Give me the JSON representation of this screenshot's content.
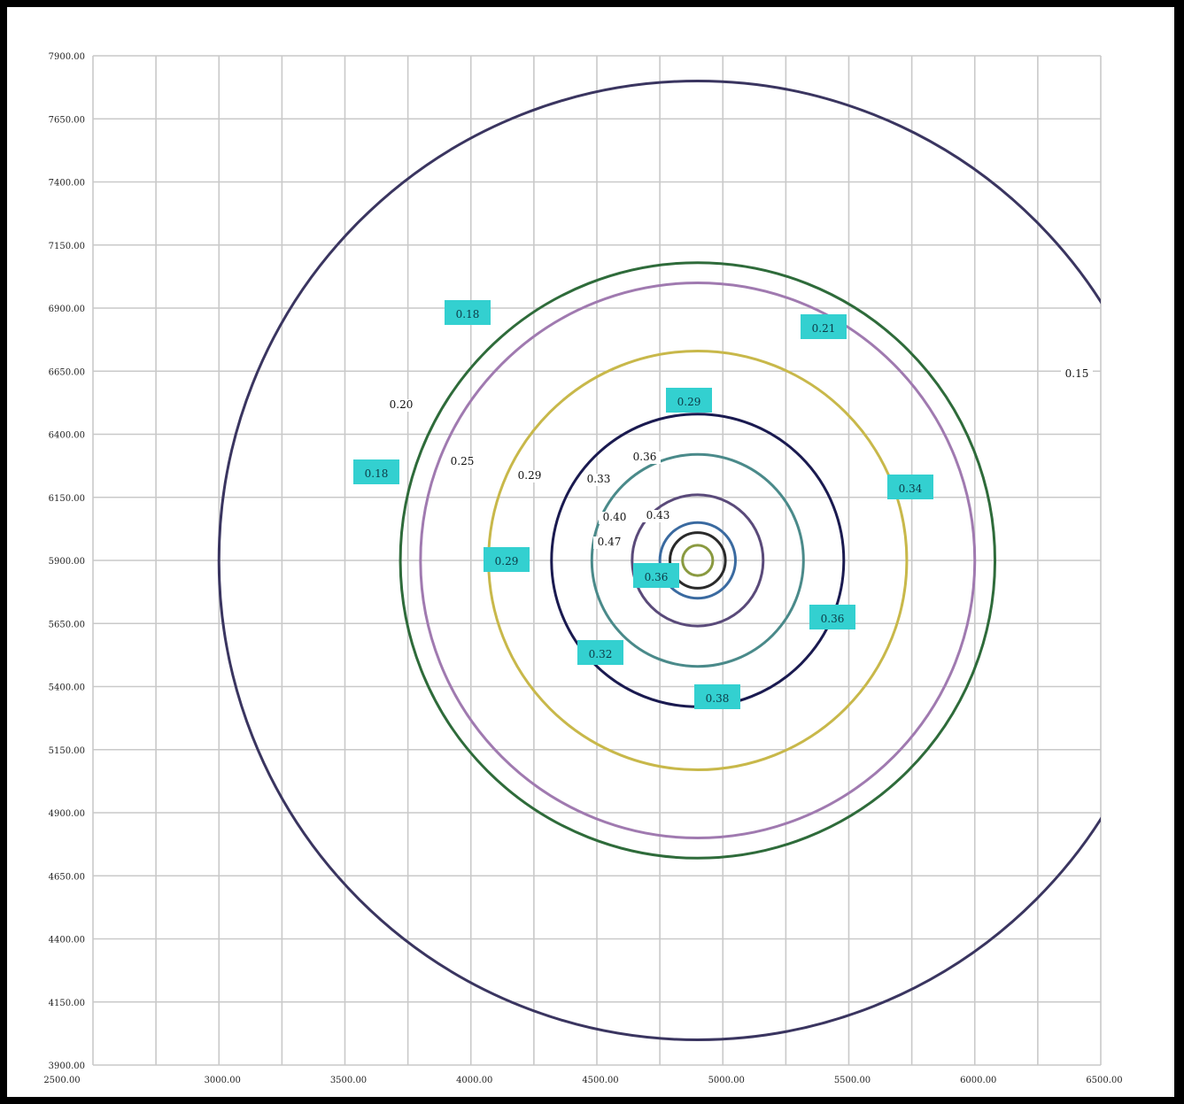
{
  "chart_data": {
    "type": "contour",
    "title": "",
    "xlabel": "",
    "ylabel": "",
    "x_ticks": [
      "2500.00",
      "3000.00",
      "3500.00",
      "4000.00",
      "4500.00",
      "5000.00",
      "5500.00",
      "6000.00",
      "6500.00"
    ],
    "y_ticks": [
      "7900.00",
      "7650.00",
      "7400.00",
      "7150.00",
      "6900.00",
      "6650.00",
      "6400.00",
      "6150.00",
      "5900.00",
      "5650.00",
      "5400.00",
      "5150.00",
      "4900.00",
      "4650.00",
      "4400.00",
      "4150.00",
      "3900.00"
    ],
    "xlim": [
      2500,
      6500
    ],
    "ylim": [
      3900,
      7900
    ],
    "grid": true,
    "contours": [
      {
        "level": "0.15",
        "center": [
          4900,
          5900
        ],
        "radius": 1900,
        "color": "#3a3560",
        "label": "0.15"
      },
      {
        "level": "0.18",
        "center": [
          4900,
          5900
        ],
        "radius": 1180,
        "color": "#2e6b3a",
        "label": "0.18"
      },
      {
        "level": "0.20",
        "center": [
          4900,
          5900
        ],
        "radius": 1100,
        "color": "#a07ab0",
        "label": "0.20"
      },
      {
        "level": "0.25",
        "center": [
          4900,
          5900
        ],
        "radius": 830,
        "color": "#c8b84a",
        "label": "0.25"
      },
      {
        "level": "0.29",
        "center": [
          4900,
          5900
        ],
        "radius": 580,
        "color": "#1a1a50",
        "label": "0.29"
      },
      {
        "level": "0.33",
        "center": [
          4900,
          5900
        ],
        "radius": 420,
        "color": "#4a8a8a",
        "label": "0.33"
      },
      {
        "level": "0.36",
        "center": [
          4900,
          5900
        ],
        "radius": 260,
        "color": "#5a4a7a",
        "label": "0.36"
      },
      {
        "level": "0.40",
        "center": [
          4900,
          5900
        ],
        "radius": 150,
        "color": "#3a6aa0",
        "label": "0.40"
      },
      {
        "level": "0.43",
        "center": [
          4900,
          5900
        ],
        "radius": 110,
        "color": "#2a2a2a",
        "label": "0.43"
      },
      {
        "level": "0.47",
        "center": [
          4900,
          5900
        ],
        "radius": 60,
        "color": "#8a9a40",
        "label": "0.47"
      }
    ],
    "boxed_labels": [
      "0.18",
      "0.18",
      "0.21",
      "0.29",
      "0.29",
      "0.34",
      "0.32",
      "0.38",
      "0.36",
      "0.36"
    ],
    "plain_labels": [
      "0.15",
      "0.20",
      "0.25",
      "0.29",
      "0.33",
      "0.36",
      "0.40",
      "0.43",
      "0.47"
    ]
  }
}
